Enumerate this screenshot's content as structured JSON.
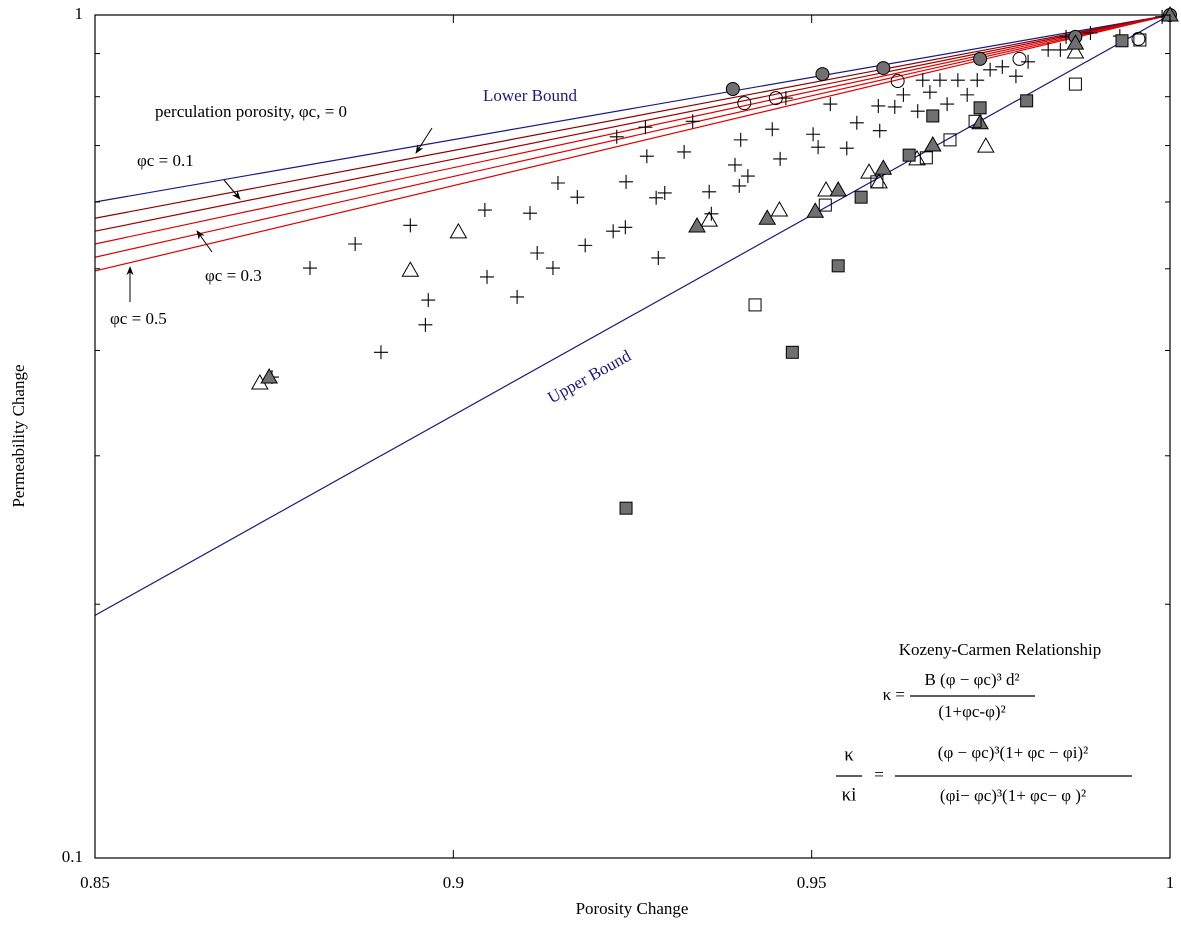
{
  "chart_data": {
    "type": "scatter",
    "x_label": "Porosity Change",
    "y_label": "Permeability Change",
    "xlim": [
      0.85,
      1
    ],
    "ylim": [
      0.1,
      1
    ],
    "y_log": true,
    "xticks": [
      0.85,
      0.9,
      0.95,
      1
    ],
    "yticks": [
      0.1,
      1
    ],
    "y_minor_ticks": [
      0.2,
      0.3,
      0.4,
      0.5,
      0.6,
      0.7,
      0.8,
      0.9
    ],
    "lines": [
      {
        "color": "#1a1a80",
        "x": [
          0.85,
          1
        ],
        "values": [
          0.6,
          1
        ]
      },
      {
        "color": "#1a1a80",
        "x": [
          0.85,
          1
        ],
        "values": [
          0.194,
          1
        ]
      },
      {
        "color": "#8b0000",
        "x": [
          0.85,
          1
        ],
        "values": [
          0.574,
          1
        ]
      },
      {
        "color": "#a00000",
        "x": [
          0.85,
          1
        ],
        "values": [
          0.554,
          1
        ]
      },
      {
        "color": "#e00000",
        "x": [
          0.85,
          1
        ],
        "values": [
          0.535,
          1
        ]
      },
      {
        "color": "#e00000",
        "x": [
          0.85,
          1
        ],
        "values": [
          0.516,
          1
        ]
      },
      {
        "color": "#e00000",
        "x": [
          0.85,
          1
        ],
        "values": [
          0.497,
          1
        ]
      }
    ],
    "series": [
      {
        "marker": "plus",
        "color": "#000000",
        "x": [
          0.8747,
          0.88,
          0.8863,
          0.8899,
          0.894,
          0.8965,
          0.8961,
          0.9044,
          0.9047,
          0.9089,
          0.9107,
          0.9117,
          0.9139,
          0.9146,
          0.9173,
          0.9184,
          0.9223,
          0.924,
          0.9228,
          0.9241,
          0.9268,
          0.927,
          0.9283,
          0.9286,
          0.9295,
          0.9322,
          0.9334,
          0.9357,
          0.936,
          0.9401,
          0.9393,
          0.9399,
          0.9411,
          0.9445,
          0.9456,
          0.9464,
          0.9502,
          0.9509,
          0.9526,
          0.9549,
          0.9563,
          0.9593,
          0.9595,
          0.9616,
          0.9628,
          0.9648,
          0.9655,
          0.9665,
          0.9679,
          0.9689,
          0.9704,
          0.9717,
          0.9731,
          0.9749,
          0.9766,
          0.9785,
          0.9802,
          0.983,
          0.9847,
          0.9855,
          0.9889,
          0.993,
          0.9989
        ],
        "values": [
          0.372,
          0.501,
          0.535,
          0.398,
          0.563,
          0.459,
          0.429,
          0.587,
          0.489,
          0.463,
          0.582,
          0.522,
          0.501,
          0.632,
          0.608,
          0.533,
          0.554,
          0.56,
          0.717,
          0.634,
          0.736,
          0.68,
          0.607,
          0.515,
          0.615,
          0.688,
          0.748,
          0.617,
          0.581,
          0.711,
          0.664,
          0.627,
          0.644,
          0.732,
          0.675,
          0.797,
          0.722,
          0.697,
          0.784,
          0.695,
          0.745,
          0.78,
          0.729,
          0.778,
          0.804,
          0.769,
          0.837,
          0.81,
          0.837,
          0.784,
          0.837,
          0.804,
          0.837,
          0.861,
          0.868,
          0.846,
          0.88,
          0.909,
          0.909,
          0.942,
          0.952,
          0.944,
          0.995
        ]
      },
      {
        "marker": "circle",
        "color": "#000000",
        "fill": "none",
        "x": [
          0.9406,
          0.945,
          0.962,
          0.979,
          0.9956
        ],
        "values": [
          0.786,
          0.797,
          0.835,
          0.887,
          0.937
        ]
      },
      {
        "marker": "circle",
        "color": "#000000",
        "fill": "#707070",
        "x": [
          0.939,
          0.9515,
          0.96,
          0.9735,
          0.9868,
          1
        ],
        "values": [
          0.817,
          0.851,
          0.865,
          0.887,
          0.942,
          1
        ]
      },
      {
        "marker": "triangle",
        "color": "#000000",
        "fill": "none",
        "x": [
          0.873,
          0.894,
          0.9007,
          0.9357,
          0.9455,
          0.952,
          0.958,
          0.9594,
          0.9647,
          0.9743,
          0.9868
        ],
        "values": [
          0.366,
          0.498,
          0.553,
          0.571,
          0.587,
          0.62,
          0.651,
          0.634,
          0.675,
          0.699,
          0.904
        ]
      },
      {
        "marker": "triangle",
        "color": "#000000",
        "fill": "#707070",
        "x": [
          0.8743,
          0.934,
          0.9438,
          0.9505,
          0.9537,
          0.96,
          0.9669,
          0.9735,
          0.9868,
          1
        ],
        "values": [
          0.372,
          0.562,
          0.574,
          0.585,
          0.62,
          0.658,
          0.701,
          0.745,
          0.926,
          1
        ]
      },
      {
        "marker": "square",
        "color": "#000000",
        "fill": "none",
        "x": [
          0.9421,
          0.9519,
          0.9591,
          0.966,
          0.9693,
          0.9728,
          0.9868,
          0.9958
        ],
        "values": [
          0.453,
          0.595,
          0.634,
          0.677,
          0.711,
          0.748,
          0.828,
          0.934
        ]
      },
      {
        "marker": "square",
        "color": "#000000",
        "fill": "#707070",
        "x": [
          0.9241,
          0.9473,
          0.9537,
          0.9569,
          0.9636,
          0.9669,
          0.9735,
          0.98,
          0.9933
        ],
        "values": [
          0.26,
          0.398,
          0.504,
          0.608,
          0.682,
          0.759,
          0.776,
          0.791,
          0.932
        ]
      }
    ],
    "annotations": {
      "lower_bound": "Lower Bound",
      "upper_bound": "Upper Bound",
      "phi_c_0": "perculation porosity, φc, = 0",
      "phi_c_01": "φc = 0.1",
      "phi_c_03": "φc = 0.3",
      "phi_c_05": "φc = 0.5",
      "kc_title": "Kozeny-Carmen Relationship",
      "kc_lhs": "κ =",
      "kc_numerator": "B (φ − φc)³ d²",
      "kc_denominator": "(1+φc-φ)²",
      "ratio_numerator": "κ",
      "ratio_denominator": "κi",
      "ratio_equals": "=",
      "ratio_rhs_numerator": "(φ − φc)³(1+ φc − φi)²",
      "ratio_rhs_denominator": "(φi− φc)³(1+ φc− φ )²"
    }
  }
}
